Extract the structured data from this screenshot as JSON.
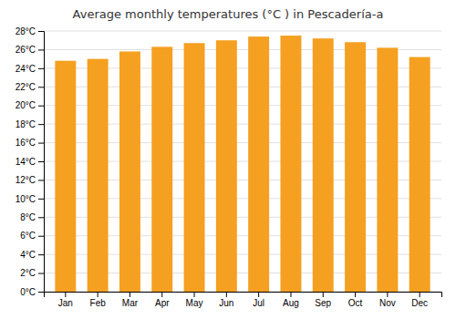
{
  "chart_data": {
    "type": "bar",
    "title": "Average monthly temperatures (°C ) in Pescadería-a",
    "categories": [
      "Jan",
      "Feb",
      "Mar",
      "Apr",
      "May",
      "Jun",
      "Jul",
      "Aug",
      "Sep",
      "Oct",
      "Nov",
      "Dec"
    ],
    "values": [
      24.8,
      25.0,
      25.8,
      26.3,
      26.7,
      27.0,
      27.4,
      27.5,
      27.2,
      26.8,
      26.2,
      25.2
    ],
    "color": "#F5A020",
    "ylim": [
      0,
      28
    ],
    "yticks": [
      {
        "value": 0,
        "label": "0°C"
      },
      {
        "value": 2,
        "label": "2°C"
      },
      {
        "value": 4,
        "label": "4°C"
      },
      {
        "value": 6,
        "label": "6°C"
      },
      {
        "value": 8,
        "label": "8°C"
      },
      {
        "value": 10,
        "label": "10°C"
      },
      {
        "value": 12,
        "label": "12°C"
      },
      {
        "value": 14,
        "label": "14°C"
      },
      {
        "value": 16,
        "label": "16°C"
      },
      {
        "value": 18,
        "label": "18°C"
      },
      {
        "value": 20,
        "label": "20°C"
      },
      {
        "value": 22,
        "label": "22°C"
      },
      {
        "value": 24,
        "label": "24°C"
      },
      {
        "value": 26,
        "label": "26°C"
      },
      {
        "value": 28,
        "label": "28°C"
      }
    ],
    "grid": true
  }
}
